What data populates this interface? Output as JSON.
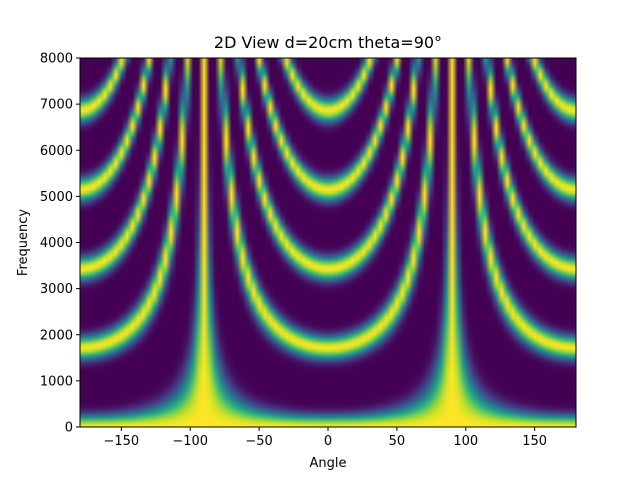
{
  "chart_data": {
    "type": "heatmap",
    "title": "2D View d=20cm theta=90°",
    "xlabel": "Angle",
    "ylabel": "Frequency",
    "xlim": [
      -180,
      180
    ],
    "ylim": [
      0,
      8000
    ],
    "x_ticks": [
      -150,
      -100,
      -50,
      0,
      50,
      100,
      150
    ],
    "y_ticks": [
      0,
      1000,
      2000,
      3000,
      4000,
      5000,
      6000,
      7000,
      8000
    ],
    "x_tick_labels": [
      "−150",
      "−100",
      "−50",
      "0",
      "50",
      "100",
      "150"
    ],
    "y_tick_labels": [
      "0",
      "1000",
      "2000",
      "3000",
      "4000",
      "5000",
      "6000",
      "7000",
      "8000"
    ],
    "colormap": "viridis",
    "grid": false,
    "legend": "none",
    "steer_angle_deg": 90,
    "mic_spacing_cm": 20,
    "main_lobe_angles": [
      -90,
      90
    ],
    "bright_band_minima": [
      {
        "angle": 0,
        "frequency": 1700
      },
      {
        "angle": 0,
        "frequency": 3400
      },
      {
        "angle": 0,
        "frequency": 5100
      },
      {
        "angle": 0,
        "frequency": 6800
      },
      {
        "angle": -180,
        "frequency": 1700
      },
      {
        "angle": 180,
        "frequency": 1700
      }
    ]
  }
}
